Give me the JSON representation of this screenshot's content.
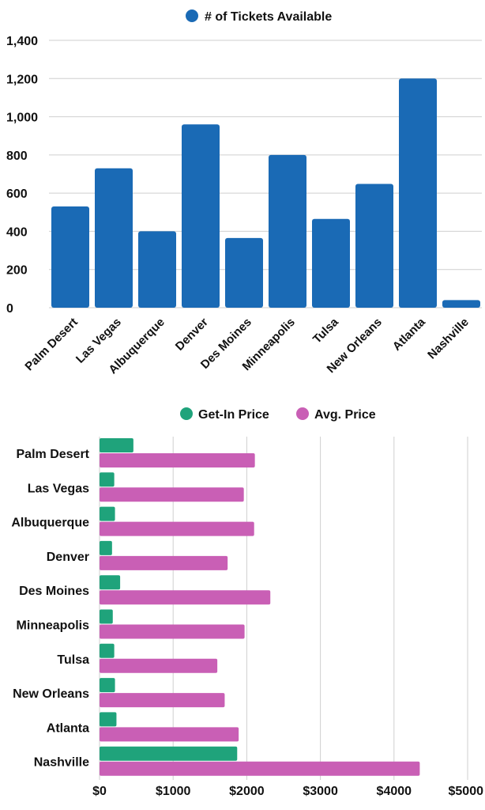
{
  "chart_data": [
    {
      "type": "bar",
      "categories": [
        "Palm Desert",
        "Las Vegas",
        "Albuquerque",
        "Denver",
        "Des Moines",
        "Minneapolis",
        "Tulsa",
        "New Orleans",
        "Atlanta",
        "Nashville"
      ],
      "series": [
        {
          "name": "# of Tickets Available",
          "color": "#1A6AB5",
          "values": [
            530,
            730,
            400,
            960,
            365,
            800,
            465,
            648,
            1200,
            40
          ]
        }
      ],
      "ylim": [
        0,
        1400
      ],
      "yticks": [
        0,
        200,
        400,
        600,
        800,
        1000,
        1200,
        1400
      ],
      "ytick_labels": [
        "0",
        "200",
        "400",
        "600",
        "800",
        "1,000",
        "1,200",
        "1,400"
      ],
      "grid": true,
      "legend": "top-center"
    },
    {
      "type": "bar",
      "orientation": "horizontal",
      "categories": [
        "Palm Desert",
        "Las Vegas",
        "Albuquerque",
        "Denver",
        "Des Moines",
        "Minneapolis",
        "Tulsa",
        "New Orleans",
        "Atlanta",
        "Nashville"
      ],
      "series": [
        {
          "name": "Get-In Price",
          "color": "#1FA37B",
          "values": [
            460,
            200,
            210,
            170,
            280,
            180,
            200,
            210,
            230,
            1870
          ]
        },
        {
          "name": "Avg. Price",
          "color": "#C95FB5",
          "values": [
            2110,
            1960,
            2100,
            1740,
            2320,
            1970,
            1600,
            1700,
            1890,
            4350
          ]
        }
      ],
      "xlim": [
        0,
        5000
      ],
      "xticks": [
        0,
        1000,
        2000,
        3000,
        4000,
        5000
      ],
      "xtick_labels": [
        "$0",
        "$1000",
        "$2000",
        "$3000",
        "$4000",
        "$5000"
      ],
      "grid": true,
      "legend": "top-center"
    }
  ]
}
